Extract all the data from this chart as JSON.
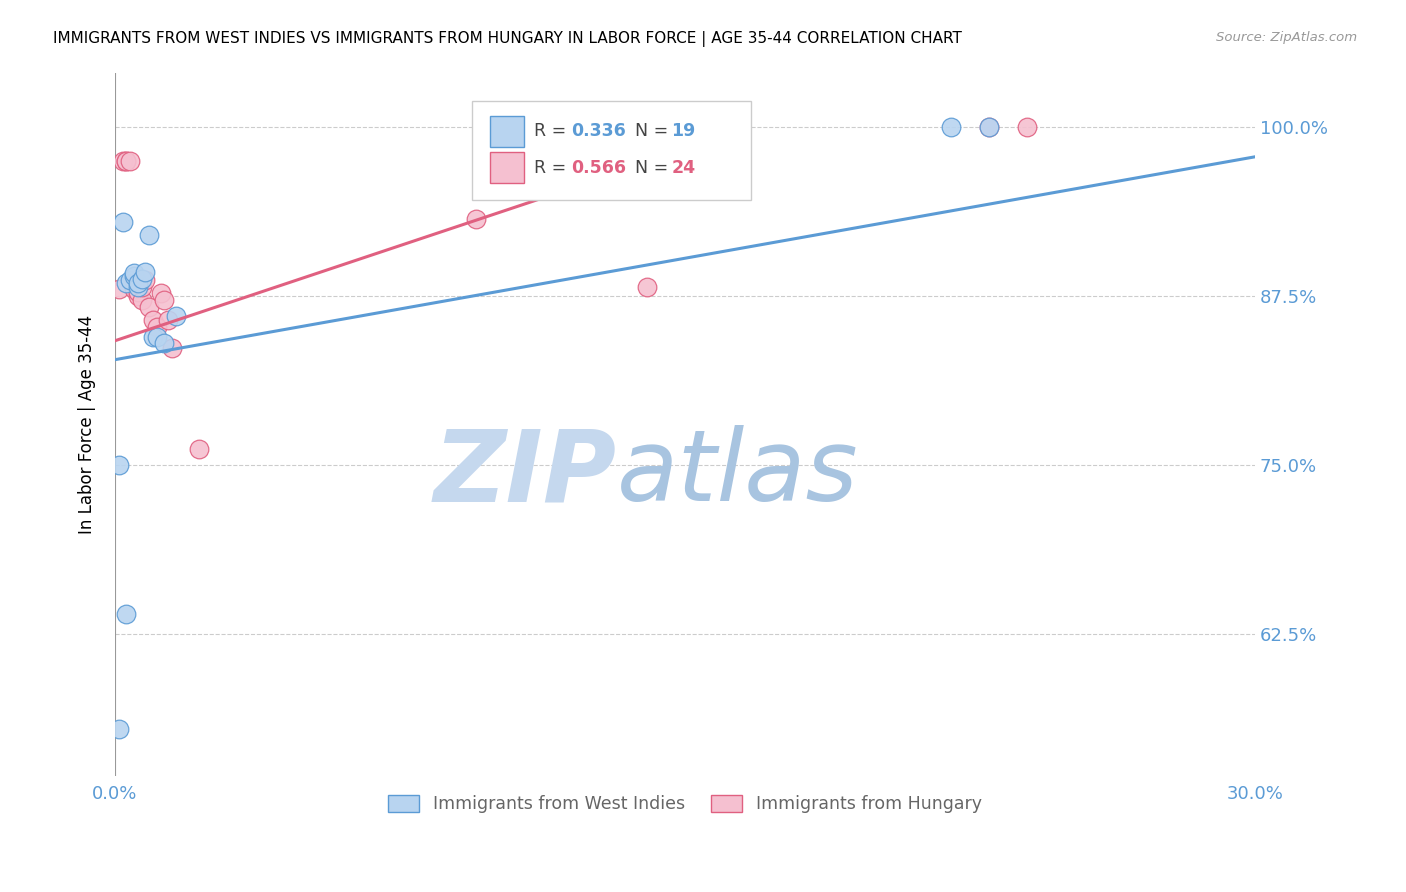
{
  "title": "IMMIGRANTS FROM WEST INDIES VS IMMIGRANTS FROM HUNGARY IN LABOR FORCE | AGE 35-44 CORRELATION CHART",
  "source": "Source: ZipAtlas.com",
  "ylabel": "In Labor Force | Age 35-44",
  "ytick_labels": [
    "100.0%",
    "87.5%",
    "75.0%",
    "62.5%"
  ],
  "ytick_values": [
    1.0,
    0.875,
    0.75,
    0.625
  ],
  "xlim": [
    0.0,
    0.3
  ],
  "ylim": [
    0.52,
    1.04
  ],
  "west_indies_R": 0.336,
  "west_indies_N": 19,
  "hungary_R": 0.566,
  "hungary_N": 24,
  "west_indies_color": "#b8d4f0",
  "hungary_color": "#f5c0d0",
  "west_indies_line_color": "#5b9bd5",
  "hungary_line_color": "#e06080",
  "west_indies_x": [
    0.001,
    0.002,
    0.003,
    0.004,
    0.005,
    0.005,
    0.006,
    0.006,
    0.007,
    0.008,
    0.009,
    0.01,
    0.011,
    0.013,
    0.016,
    0.22,
    0.23,
    0.001,
    0.003
  ],
  "west_indies_y": [
    0.555,
    0.93,
    0.885,
    0.887,
    0.89,
    0.892,
    0.882,
    0.885,
    0.888,
    0.893,
    0.92,
    0.845,
    0.845,
    0.84,
    0.86,
    1.0,
    1.0,
    0.75,
    0.64
  ],
  "hungary_x": [
    0.001,
    0.002,
    0.003,
    0.003,
    0.004,
    0.005,
    0.005,
    0.006,
    0.006,
    0.007,
    0.007,
    0.008,
    0.009,
    0.01,
    0.011,
    0.012,
    0.013,
    0.014,
    0.015,
    0.022,
    0.095,
    0.14,
    0.23,
    0.24
  ],
  "hungary_y": [
    0.88,
    0.975,
    0.975,
    0.975,
    0.975,
    0.885,
    0.88,
    0.875,
    0.878,
    0.872,
    0.882,
    0.887,
    0.867,
    0.857,
    0.852,
    0.877,
    0.872,
    0.857,
    0.837,
    0.762,
    0.932,
    0.882,
    1.0,
    1.0
  ],
  "west_indies_trendline_x": [
    0.0,
    0.3
  ],
  "west_indies_trendline_y": [
    0.828,
    0.978
  ],
  "hungary_trendline_x": [
    0.0,
    0.145
  ],
  "hungary_trendline_y": [
    0.842,
    0.978
  ],
  "watermark_zip": "ZIP",
  "watermark_atlas": "atlas",
  "watermark_zip_color": "#c5d8ee",
  "watermark_atlas_color": "#a8c4e0",
  "legend_R_label": "R = ",
  "legend_N_label": "N = ",
  "legend_blue_label": "Immigrants from West Indies",
  "legend_pink_label": "Immigrants from Hungary"
}
